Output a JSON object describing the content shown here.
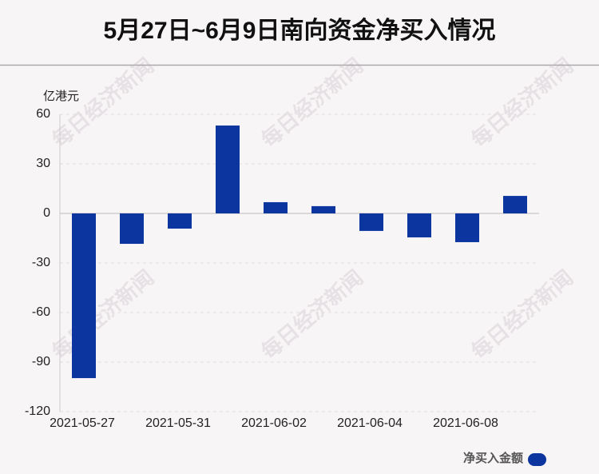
{
  "chart_data": {
    "type": "bar",
    "title": "5月27日~6月9日南向资金净买入情况",
    "y_label": "亿港元",
    "watermark": "每日经济新闻",
    "categories": [
      "2021-05-27",
      null,
      "2021-05-31",
      null,
      "2021-06-02",
      null,
      "2021-06-04",
      null,
      "2021-06-08",
      null
    ],
    "series": [
      {
        "name": "净买入金额",
        "color": "#0c35a0",
        "values": [
          -99.7,
          -18.4,
          -9.2,
          53.2,
          6.8,
          4.4,
          -10.6,
          -14.5,
          -17.4,
          10.6
        ]
      }
    ],
    "ylim": [
      -120,
      60
    ],
    "yticks": [
      -120,
      -90,
      -60,
      -30,
      0,
      30,
      60
    ],
    "grid": true,
    "legend": "bottom-right"
  }
}
